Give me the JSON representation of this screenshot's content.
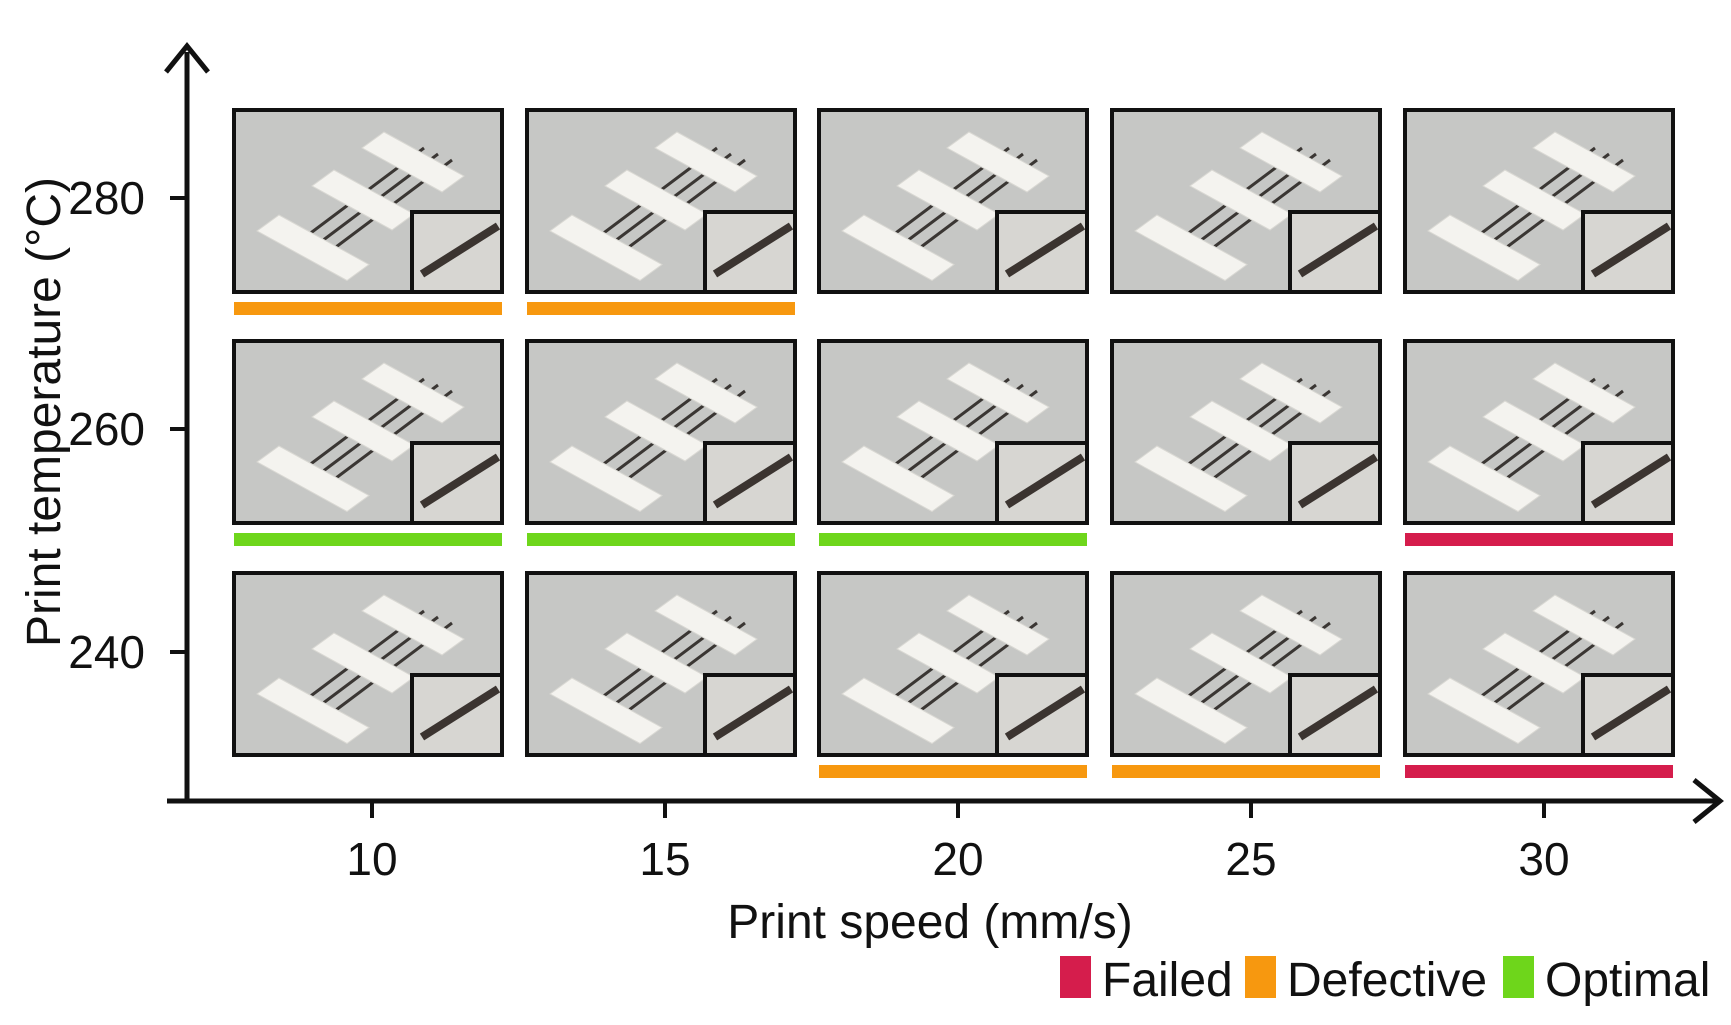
{
  "chart_data": {
    "type": "table",
    "xlabel": "Print speed (mm/s)",
    "ylabel": "Print temperature (°C)",
    "x_ticks": [
      10,
      15,
      20,
      25,
      30
    ],
    "y_ticks": [
      280,
      260,
      240
    ],
    "categories": [
      "Failed",
      "Defective",
      "Optimal"
    ],
    "cells": [
      {
        "temperature": 280,
        "speed": 10,
        "result": "Defective"
      },
      {
        "temperature": 280,
        "speed": 15,
        "result": "Defective"
      },
      {
        "temperature": 280,
        "speed": 20,
        "result": null
      },
      {
        "temperature": 280,
        "speed": 25,
        "result": null
      },
      {
        "temperature": 280,
        "speed": 30,
        "result": null
      },
      {
        "temperature": 260,
        "speed": 10,
        "result": "Optimal"
      },
      {
        "temperature": 260,
        "speed": 15,
        "result": "Optimal"
      },
      {
        "temperature": 260,
        "speed": 20,
        "result": "Optimal"
      },
      {
        "temperature": 260,
        "speed": 25,
        "result": null
      },
      {
        "temperature": 260,
        "speed": 30,
        "result": "Failed"
      },
      {
        "temperature": 240,
        "speed": 10,
        "result": null
      },
      {
        "temperature": 240,
        "speed": 15,
        "result": null
      },
      {
        "temperature": 240,
        "speed": 20,
        "result": "Defective"
      },
      {
        "temperature": 240,
        "speed": 25,
        "result": "Defective"
      },
      {
        "temperature": 240,
        "speed": 30,
        "result": "Failed"
      }
    ],
    "legend": [
      {
        "label": "Failed",
        "color": "#d51d4c"
      },
      {
        "label": "Defective",
        "color": "#f7980f"
      },
      {
        "label": "Optimal",
        "color": "#6ed61b"
      }
    ],
    "legend_position": "bottom-right",
    "grid": false
  }
}
